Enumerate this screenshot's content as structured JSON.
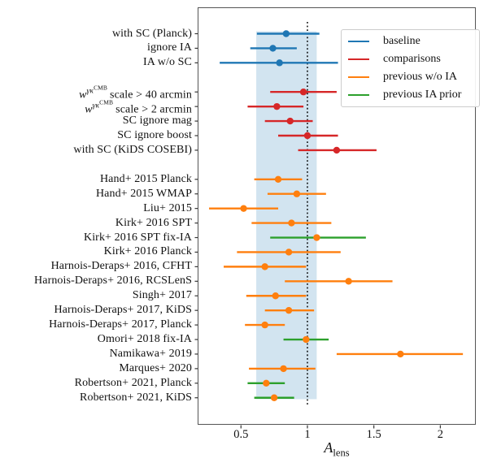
{
  "chart_data": {
    "type": "scatter",
    "chart_kind": "horizontal error-bar forest plot",
    "title": "",
    "xlabel_base": "A",
    "xlabel_sub": "lens",
    "xlim": [
      0.174,
      2.267
    ],
    "x_ticks": [
      0.5,
      1.0,
      1.5,
      2.0
    ],
    "x_tick_labels": [
      "0.5",
      "1",
      "1.5",
      "2"
    ],
    "grid": false,
    "reference_line_x": 1.0,
    "band": {
      "x_from": 0.615,
      "x_to": 1.07,
      "color": "#1f77b4",
      "opacity": 0.2
    },
    "colors": {
      "baseline": "#1f77b4",
      "comparisons": "#d62728",
      "previous_wo_ia": "#ff7f0e",
      "previous_ia_prior": "#2ca02c",
      "marker_previous_ia_prior": "#ff7f0e"
    },
    "legend": {
      "position": "upper right",
      "entries": [
        {
          "label": "baseline",
          "color": "#1f77b4"
        },
        {
          "label": "comparisons",
          "color": "#d62728"
        },
        {
          "label": "previous w/o IA",
          "color": "#ff7f0e"
        },
        {
          "label": "previous IA prior",
          "color": "#2ca02c"
        }
      ]
    },
    "rows": [
      {
        "label": "with SC (Planck)",
        "slot": 0,
        "group": "baseline",
        "lo": 0.62,
        "value": 0.84,
        "hi": 1.09
      },
      {
        "label": "ignore IA",
        "slot": 1,
        "group": "baseline",
        "lo": 0.57,
        "value": 0.74,
        "hi": 0.92
      },
      {
        "label": "IA w/o SC",
        "slot": 2,
        "group": "baseline",
        "lo": 0.34,
        "value": 0.79,
        "hi": 1.23
      },
      {
        "label": "scale > 40 arcmin",
        "math": {
          "base": "w",
          "sup": "γκ",
          "supsup": "CMB"
        },
        "slot": 4,
        "group": "comparisons",
        "lo": 0.72,
        "value": 0.97,
        "hi": 1.22
      },
      {
        "label": "scale > 2 arcmin",
        "math": {
          "base": "w",
          "sup": "γκ",
          "supsup": "CMB"
        },
        "slot": 5,
        "group": "comparisons",
        "lo": 0.55,
        "value": 0.77,
        "hi": 0.97
      },
      {
        "label": "SC ignore mag",
        "slot": 6,
        "group": "comparisons",
        "lo": 0.68,
        "value": 0.87,
        "hi": 1.04
      },
      {
        "label": "SC ignore boost",
        "slot": 7,
        "group": "comparisons",
        "lo": 0.78,
        "value": 1.0,
        "hi": 1.23
      },
      {
        "label": "with SC (KiDS COSEBI)",
        "slot": 8,
        "group": "comparisons",
        "lo": 0.93,
        "value": 1.22,
        "hi": 1.52
      },
      {
        "label": "Hand+ 2015 Planck",
        "slot": 10,
        "group": "previous_wo_ia",
        "lo": 0.6,
        "value": 0.78,
        "hi": 0.96
      },
      {
        "label": "Hand+ 2015 WMAP",
        "slot": 11,
        "group": "previous_wo_ia",
        "lo": 0.7,
        "value": 0.92,
        "hi": 1.14
      },
      {
        "label": "Liu+ 2015",
        "slot": 12,
        "group": "previous_wo_ia",
        "lo": 0.26,
        "value": 0.52,
        "hi": 0.78
      },
      {
        "label": "Kirk+ 2016 SPT",
        "slot": 13,
        "group": "previous_wo_ia",
        "lo": 0.58,
        "value": 0.88,
        "hi": 1.18
      },
      {
        "label": "Kirk+ 2016 SPT fix-IA",
        "slot": 14,
        "group": "previous_ia_prior",
        "lo": 0.72,
        "value": 1.07,
        "hi": 1.44
      },
      {
        "label": "Kirk+ 2016 Planck",
        "slot": 15,
        "group": "previous_wo_ia",
        "lo": 0.47,
        "value": 0.86,
        "hi": 1.25
      },
      {
        "label": "Harnois-Deraps+ 2016, CFHT",
        "slot": 16,
        "group": "previous_wo_ia",
        "lo": 0.37,
        "value": 0.68,
        "hi": 0.99
      },
      {
        "label": "Harnois-Deraps+ 2016, RCSLenS",
        "slot": 17,
        "group": "previous_wo_ia",
        "lo": 0.83,
        "value": 1.31,
        "hi": 1.64
      },
      {
        "label": "Singh+ 2017",
        "slot": 18,
        "group": "previous_wo_ia",
        "lo": 0.54,
        "value": 0.76,
        "hi": 0.99
      },
      {
        "label": "Harnois-Deraps+ 2017, KiDS",
        "slot": 19,
        "group": "previous_wo_ia",
        "lo": 0.68,
        "value": 0.86,
        "hi": 1.05
      },
      {
        "label": "Harnois-Deraps+ 2017, Planck",
        "slot": 20,
        "group": "previous_wo_ia",
        "lo": 0.53,
        "value": 0.68,
        "hi": 0.83
      },
      {
        "label": "Omori+ 2018 fix-IA",
        "slot": 21,
        "group": "previous_ia_prior",
        "lo": 0.82,
        "value": 0.99,
        "hi": 1.16
      },
      {
        "label": "Namikawa+ 2019",
        "slot": 22,
        "group": "previous_wo_ia",
        "lo": 1.22,
        "value": 1.7,
        "hi": 2.17
      },
      {
        "label": "Marques+ 2020",
        "slot": 23,
        "group": "previous_wo_ia",
        "lo": 0.56,
        "value": 0.82,
        "hi": 1.06
      },
      {
        "label": "Robertson+ 2021, Planck",
        "slot": 24,
        "group": "previous_ia_prior",
        "lo": 0.55,
        "value": 0.69,
        "hi": 0.83
      },
      {
        "label": "Robertson+ 2021, KiDS",
        "slot": 25,
        "group": "previous_ia_prior",
        "lo": 0.6,
        "value": 0.75,
        "hi": 0.9
      }
    ]
  }
}
